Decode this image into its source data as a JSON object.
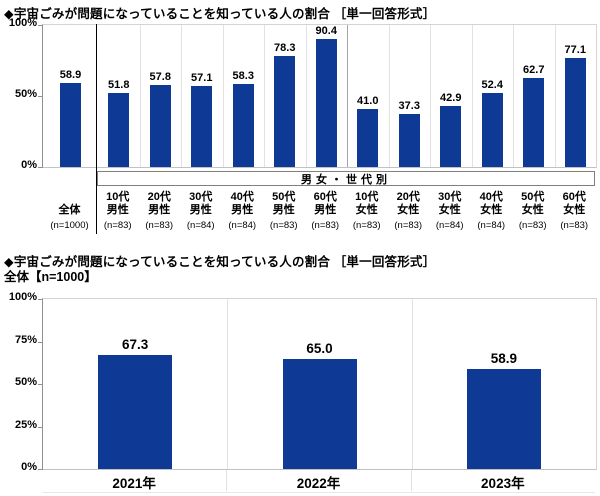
{
  "colors": {
    "bar": "#0e3a96",
    "axis": "#8f8f8f",
    "column_separator": "#e2e2e2",
    "male_female_divider": "#a6a6a6",
    "overall_divider": "#000000",
    "box_border": "#7f7f7f"
  },
  "chart_data": [
    {
      "type": "bar",
      "title": "◆宇宙ごみが問題になっていることを知っている人の割合 ［単一回答形式］",
      "group_label": "男女・世代別",
      "yticks": [
        "100%",
        "50%",
        "0%"
      ],
      "ylim": [
        0,
        100
      ],
      "grid": false,
      "legend": "none",
      "categories": [
        {
          "lines": [
            "全体"
          ],
          "n": "(n=1000)"
        },
        {
          "lines": [
            "10代",
            "男性"
          ],
          "n": "(n=83)"
        },
        {
          "lines": [
            "20代",
            "男性"
          ],
          "n": "(n=83)"
        },
        {
          "lines": [
            "30代",
            "男性"
          ],
          "n": "(n=84)"
        },
        {
          "lines": [
            "40代",
            "男性"
          ],
          "n": "(n=84)"
        },
        {
          "lines": [
            "50代",
            "男性"
          ],
          "n": "(n=83)"
        },
        {
          "lines": [
            "60代",
            "男性"
          ],
          "n": "(n=83)"
        },
        {
          "lines": [
            "10代",
            "女性"
          ],
          "n": "(n=83)"
        },
        {
          "lines": [
            "20代",
            "女性"
          ],
          "n": "(n=83)"
        },
        {
          "lines": [
            "30代",
            "女性"
          ],
          "n": "(n=84)"
        },
        {
          "lines": [
            "40代",
            "女性"
          ],
          "n": "(n=84)"
        },
        {
          "lines": [
            "50代",
            "女性"
          ],
          "n": "(n=83)"
        },
        {
          "lines": [
            "60代",
            "女性"
          ],
          "n": "(n=83)"
        }
      ],
      "values": [
        58.9,
        51.8,
        57.8,
        57.1,
        58.3,
        78.3,
        90.4,
        41.0,
        37.3,
        42.9,
        52.4,
        62.7,
        77.1
      ],
      "value_labels": [
        "58.9",
        "51.8",
        "57.8",
        "57.1",
        "58.3",
        "78.3",
        "90.4",
        "41.0",
        "37.3",
        "42.9",
        "52.4",
        "62.7",
        "77.1"
      ]
    },
    {
      "type": "bar",
      "title": "◆宇宙ごみが問題になっていることを知っている人の割合 ［単一回答形式］",
      "subtitle": "全体【n=1000】",
      "yticks": [
        "100%",
        "75%",
        "50%",
        "25%",
        "0%"
      ],
      "ylim": [
        0,
        100
      ],
      "grid": false,
      "legend": "none",
      "categories": [
        {
          "lines": [
            "2021年"
          ]
        },
        {
          "lines": [
            "2022年"
          ]
        },
        {
          "lines": [
            "2023年"
          ]
        }
      ],
      "values": [
        67.3,
        65.0,
        58.9
      ],
      "value_labels": [
        "67.3",
        "65.0",
        "58.9"
      ]
    }
  ]
}
